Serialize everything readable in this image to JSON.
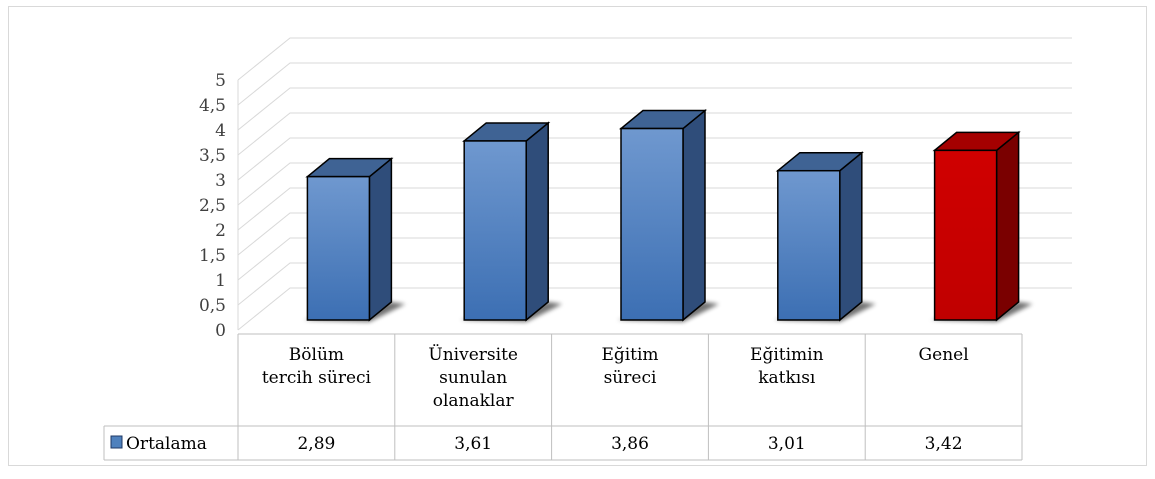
{
  "chart_data": {
    "type": "bar",
    "title": "",
    "xlabel": "",
    "ylabel": "",
    "ylim": [
      0,
      5
    ],
    "yticks": [
      "0",
      "0,5",
      "1",
      "1,5",
      "2",
      "2,5",
      "3",
      "3,5",
      "4",
      "4,5",
      "5"
    ],
    "categories": [
      [
        "Bölüm",
        "tercih süreci"
      ],
      [
        "Üniversite",
        "sunulan",
        "olanaklar"
      ],
      [
        "Eğitim",
        "süreci"
      ],
      [
        "Eğitimin",
        "katkısı"
      ],
      [
        "Genel"
      ]
    ],
    "series": [
      {
        "name": "Ortalama",
        "values": [
          2.89,
          3.61,
          3.86,
          3.01,
          3.42
        ],
        "labels": [
          "2,89",
          "3,61",
          "3,86",
          "3,01",
          "3,42"
        ],
        "color": "#4f81bd",
        "highlight_index": 4,
        "highlight_color": "#c00000"
      }
    ],
    "grid": true,
    "data_table": true,
    "legend_position": "bottom-left"
  }
}
